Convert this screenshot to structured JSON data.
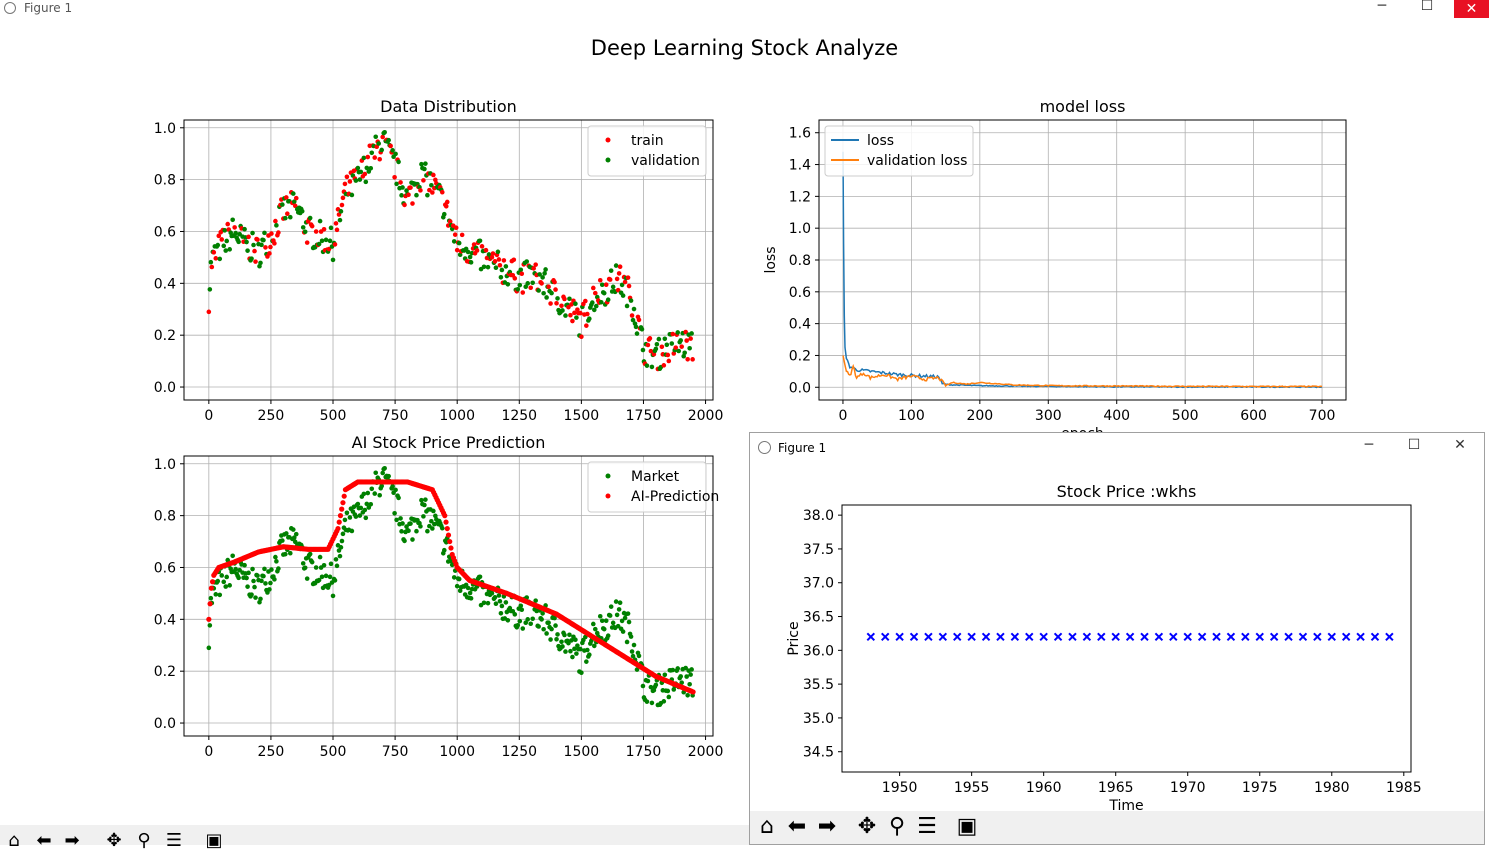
{
  "window": {
    "title": "Figure 1",
    "min_icon": "minimize-icon",
    "max_icon": "maximize-icon",
    "close_icon": "close-icon"
  },
  "figure": {
    "suptitle": "Deep Learning Stock Analyze"
  },
  "chart_data": [
    {
      "type": "scatter",
      "title": "Data Distribution",
      "xlabel": "",
      "ylabel": "",
      "xlim": [
        -100,
        2030
      ],
      "ylim": [
        -0.05,
        1.03
      ],
      "xticks": [
        "0",
        "250",
        "500",
        "750",
        "1000",
        "1250",
        "1500",
        "1750",
        "2000"
      ],
      "yticks": [
        "0.0",
        "0.2",
        "0.4",
        "0.6",
        "0.8",
        "1.0"
      ],
      "grid": true,
      "legend": "top-right",
      "anchors": [
        [
          0,
          0.35
        ],
        [
          10,
          0.48
        ],
        [
          50,
          0.55
        ],
        [
          100,
          0.6
        ],
        [
          150,
          0.55
        ],
        [
          200,
          0.52
        ],
        [
          250,
          0.58
        ],
        [
          300,
          0.68
        ],
        [
          350,
          0.7
        ],
        [
          400,
          0.6
        ],
        [
          450,
          0.58
        ],
        [
          500,
          0.55
        ],
        [
          550,
          0.75
        ],
        [
          600,
          0.8
        ],
        [
          650,
          0.88
        ],
        [
          700,
          0.95
        ],
        [
          750,
          0.85
        ],
        [
          800,
          0.72
        ],
        [
          850,
          0.82
        ],
        [
          900,
          0.78
        ],
        [
          950,
          0.7
        ],
        [
          1000,
          0.55
        ],
        [
          1050,
          0.53
        ],
        [
          1100,
          0.5
        ],
        [
          1150,
          0.47
        ],
        [
          1200,
          0.45
        ],
        [
          1250,
          0.42
        ],
        [
          1300,
          0.43
        ],
        [
          1350,
          0.4
        ],
        [
          1400,
          0.35
        ],
        [
          1450,
          0.3
        ],
        [
          1500,
          0.25
        ],
        [
          1550,
          0.35
        ],
        [
          1600,
          0.38
        ],
        [
          1650,
          0.42
        ],
        [
          1700,
          0.35
        ],
        [
          1750,
          0.15
        ],
        [
          1800,
          0.12
        ],
        [
          1850,
          0.15
        ],
        [
          1900,
          0.17
        ],
        [
          1950,
          0.15
        ]
      ],
      "series": [
        {
          "name": "train",
          "color": "#ff0000",
          "marker": "dot"
        },
        {
          "name": "validation",
          "color": "#008000",
          "marker": "dot"
        }
      ]
    },
    {
      "type": "line",
      "title": "model loss",
      "xlabel": "epoch",
      "ylabel": "loss",
      "xlim": [
        -35,
        735
      ],
      "ylim": [
        -0.08,
        1.68
      ],
      "xticks": [
        "0",
        "100",
        "200",
        "300",
        "400",
        "500",
        "600",
        "700"
      ],
      "yticks": [
        "0.0",
        "0.2",
        "0.4",
        "0.6",
        "0.8",
        "1.0",
        "1.2",
        "1.4",
        "1.6"
      ],
      "grid": true,
      "legend": "top-left",
      "series": [
        {
          "name": "loss",
          "color": "#1f77b4",
          "points": [
            [
              0,
              1.48
            ],
            [
              1,
              0.9
            ],
            [
              2,
              0.45
            ],
            [
              3,
              0.25
            ],
            [
              5,
              0.18
            ],
            [
              10,
              0.13
            ],
            [
              20,
              0.11
            ],
            [
              40,
              0.1
            ],
            [
              60,
              0.09
            ],
            [
              80,
              0.08
            ],
            [
              100,
              0.075
            ],
            [
              120,
              0.07
            ],
            [
              140,
              0.065
            ],
            [
              145,
              0.02
            ],
            [
              160,
              0.015
            ],
            [
              200,
              0.01
            ],
            [
              300,
              0.005
            ],
            [
              400,
              0.003
            ],
            [
              500,
              0.002
            ],
            [
              600,
              0.002
            ],
            [
              700,
              0.002
            ]
          ]
        },
        {
          "name": "validation loss",
          "color": "#ff7f0e",
          "points": [
            [
              0,
              0.2
            ],
            [
              5,
              0.1
            ],
            [
              10,
              0.07
            ],
            [
              15,
              0.13
            ],
            [
              20,
              0.06
            ],
            [
              30,
              0.09
            ],
            [
              40,
              0.06
            ],
            [
              60,
              0.08
            ],
            [
              80,
              0.05
            ],
            [
              100,
              0.07
            ],
            [
              120,
              0.05
            ],
            [
              140,
              0.06
            ],
            [
              150,
              0.01
            ],
            [
              160,
              0.03
            ],
            [
              180,
              0.02
            ],
            [
              200,
              0.03
            ],
            [
              250,
              0.015
            ],
            [
              300,
              0.01
            ],
            [
              400,
              0.008
            ],
            [
              500,
              0.006
            ],
            [
              600,
              0.005
            ],
            [
              700,
              0.005
            ]
          ]
        }
      ]
    },
    {
      "type": "scatter",
      "title": "AI Stock Price Prediction",
      "xlabel": "",
      "ylabel": "",
      "xlim": [
        -100,
        2030
      ],
      "ylim": [
        -0.05,
        1.03
      ],
      "xticks": [
        "0",
        "250",
        "500",
        "750",
        "1000",
        "1250",
        "1500",
        "1750",
        "2000"
      ],
      "yticks": [
        "0.0",
        "0.2",
        "0.4",
        "0.6",
        "0.8",
        "1.0"
      ],
      "grid": true,
      "legend": "top-right",
      "series": [
        {
          "name": "Market",
          "color": "#008000",
          "marker": "dot"
        },
        {
          "name": "AI-Prediction",
          "color": "#ff0000",
          "marker": "dot",
          "points": [
            [
              0,
              0.4
            ],
            [
              10,
              0.52
            ],
            [
              20,
              0.57
            ],
            [
              40,
              0.6
            ],
            [
              100,
              0.62
            ],
            [
              200,
              0.66
            ],
            [
              300,
              0.68
            ],
            [
              400,
              0.67
            ],
            [
              480,
              0.67
            ],
            [
              520,
              0.75
            ],
            [
              550,
              0.9
            ],
            [
              600,
              0.93
            ],
            [
              700,
              0.93
            ],
            [
              800,
              0.93
            ],
            [
              900,
              0.9
            ],
            [
              950,
              0.8
            ],
            [
              980,
              0.65
            ],
            [
              1000,
              0.6
            ],
            [
              1050,
              0.55
            ],
            [
              1200,
              0.5
            ],
            [
              1400,
              0.42
            ],
            [
              1600,
              0.3
            ],
            [
              1800,
              0.18
            ],
            [
              1950,
              0.12
            ]
          ]
        }
      ]
    },
    {
      "type": "scatter",
      "title": "Stock Price :wkhs",
      "xlabel": "Time",
      "ylabel": "Price",
      "xlim": [
        1946,
        1985.5
      ],
      "ylim": [
        34.2,
        38.15
      ],
      "xticks": [
        "1950",
        "1955",
        "1960",
        "1965",
        "1970",
        "1975",
        "1980",
        "1985"
      ],
      "yticks": [
        "34.5",
        "35.0",
        "35.5",
        "36.0",
        "36.5",
        "37.0",
        "37.5",
        "38.0"
      ],
      "grid": false,
      "series": [
        {
          "name": "",
          "color": "#0000ff",
          "marker": "x",
          "x": [
            1948,
            1949,
            1950,
            1951,
            1952,
            1953,
            1954,
            1955,
            1956,
            1957,
            1958,
            1959,
            1960,
            1961,
            1962,
            1963,
            1964,
            1965,
            1966,
            1967,
            1968,
            1969,
            1970,
            1971,
            1972,
            1973,
            1974,
            1975,
            1976,
            1977,
            1978,
            1979,
            1980,
            1981,
            1982,
            1983,
            1984
          ],
          "y": 36.2
        }
      ]
    }
  ],
  "toolbar": {
    "icons": [
      "home-icon",
      "back-icon",
      "forward-icon",
      "pan-icon",
      "zoom-icon",
      "configure-icon",
      "save-icon"
    ]
  },
  "window2": {
    "title": "Figure 1"
  }
}
